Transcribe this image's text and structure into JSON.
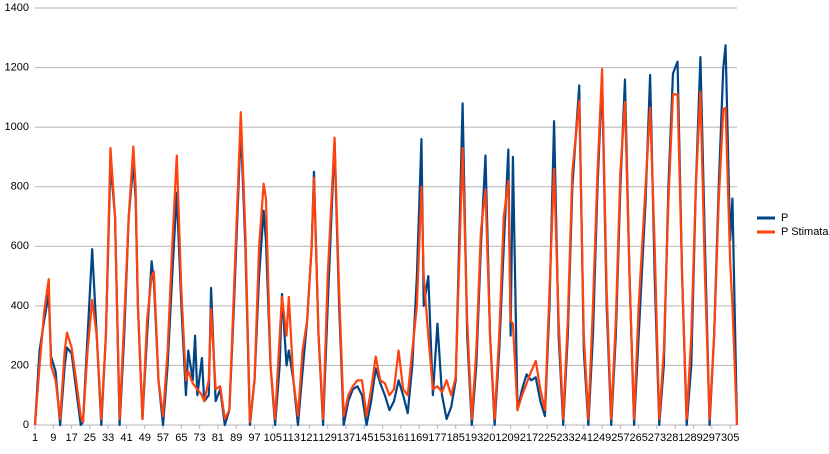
{
  "chart_data": {
    "type": "line",
    "x": [
      1,
      3,
      5,
      7,
      8,
      10,
      12,
      14,
      15,
      17,
      19,
      21,
      22,
      24,
      26,
      28,
      30,
      32,
      34,
      36,
      38,
      40,
      42,
      44,
      45,
      46,
      48,
      50,
      52,
      53,
      55,
      57,
      59,
      61,
      63,
      65,
      67,
      68,
      70,
      71,
      72,
      74,
      75,
      77,
      78,
      80,
      82,
      84,
      86,
      88,
      91,
      93,
      95,
      97,
      99,
      101,
      102,
      104,
      106,
      108,
      109,
      111,
      112,
      114,
      116,
      118,
      120,
      122,
      123,
      125,
      127,
      129,
      132,
      134,
      136,
      138,
      140,
      142,
      144,
      146,
      148,
      150,
      152,
      154,
      156,
      158,
      160,
      162,
      164,
      166,
      168,
      170,
      171,
      173,
      175,
      177,
      179,
      181,
      183,
      185,
      188,
      190,
      192,
      194,
      196,
      198,
      200,
      202,
      204,
      206,
      208,
      209,
      210,
      212,
      214,
      216,
      218,
      220,
      222,
      224,
      226,
      228,
      230,
      232,
      234,
      236,
      239,
      241,
      243,
      245,
      247,
      249,
      251,
      253,
      255,
      257,
      259,
      261,
      263,
      265,
      268,
      270,
      272,
      274,
      276,
      278,
      280,
      282,
      284,
      286,
      288,
      290,
      292,
      294,
      296,
      298,
      300,
      302,
      303,
      305,
      306,
      308
    ],
    "series": [
      {
        "name": "P",
        "color": "#004586",
        "values": [
          0,
          250,
          350,
          440,
          230,
          180,
          0,
          200,
          260,
          240,
          120,
          0,
          10,
          300,
          590,
          300,
          0,
          300,
          880,
          700,
          0,
          300,
          700,
          880,
          760,
          400,
          20,
          300,
          550,
          480,
          150,
          0,
          200,
          500,
          780,
          400,
          100,
          250,
          150,
          300,
          100,
          225,
          80,
          100,
          460,
          80,
          120,
          0,
          50,
          400,
          1000,
          600,
          0,
          150,
          500,
          720,
          620,
          200,
          0,
          200,
          440,
          200,
          250,
          150,
          0,
          180,
          350,
          600,
          850,
          300,
          0,
          400,
          950,
          400,
          0,
          80,
          120,
          130,
          100,
          0,
          80,
          190,
          140,
          100,
          50,
          80,
          150,
          100,
          40,
          200,
          500,
          960,
          400,
          500,
          100,
          340,
          100,
          20,
          60,
          150,
          1080,
          300,
          0,
          200,
          600,
          905,
          300,
          0,
          250,
          600,
          925,
          300,
          900,
          50,
          120,
          170,
          150,
          160,
          80,
          30,
          400,
          1020,
          300,
          0,
          300,
          800,
          1140,
          250,
          0,
          300,
          800,
          1165,
          400,
          0,
          300,
          800,
          1160,
          500,
          0,
          300,
          750,
          1175,
          500,
          0,
          200,
          800,
          1180,
          1220,
          500,
          0,
          200,
          800,
          1235,
          600,
          0,
          300,
          800,
          1200,
          1275,
          620,
          760,
          0
        ]
      },
      {
        "name": "P Stimata",
        "color": "#ff420e",
        "values": [
          0,
          200,
          380,
          490,
          200,
          150,
          20,
          250,
          310,
          260,
          150,
          30,
          10,
          250,
          420,
          300,
          20,
          300,
          930,
          700,
          20,
          350,
          700,
          935,
          800,
          400,
          20,
          350,
          500,
          515,
          150,
          30,
          250,
          600,
          905,
          450,
          150,
          180,
          140,
          130,
          120,
          100,
          80,
          150,
          390,
          120,
          130,
          20,
          50,
          450,
          1050,
          650,
          10,
          150,
          600,
          810,
          760,
          200,
          20,
          300,
          430,
          300,
          430,
          150,
          30,
          250,
          350,
          600,
          830,
          300,
          20,
          500,
          965,
          450,
          30,
          100,
          130,
          150,
          150,
          30,
          120,
          230,
          150,
          140,
          100,
          120,
          250,
          120,
          100,
          250,
          400,
          800,
          500,
          300,
          120,
          130,
          110,
          150,
          100,
          160,
          930,
          350,
          20,
          250,
          650,
          790,
          300,
          20,
          300,
          700,
          820,
          350,
          340,
          50,
          100,
          140,
          180,
          215,
          120,
          50,
          450,
          860,
          350,
          20,
          350,
          850,
          1090,
          300,
          20,
          400,
          850,
          1195,
          450,
          20,
          350,
          850,
          1085,
          500,
          20,
          400,
          800,
          1065,
          600,
          20,
          250,
          750,
          1110,
          1110,
          500,
          20,
          300,
          800,
          1120,
          500,
          20,
          300,
          750,
          1060,
          1065,
          550,
          400,
          0
        ]
      }
    ],
    "xlim": [
      1,
      308
    ],
    "xticks": [
      1,
      9,
      17,
      25,
      33,
      41,
      49,
      57,
      65,
      73,
      81,
      89,
      97,
      105,
      113,
      121,
      129,
      137,
      145,
      153,
      161,
      169,
      177,
      185,
      193,
      201,
      209,
      217,
      225,
      233,
      241,
      249,
      257,
      265,
      273,
      281,
      289,
      297,
      305
    ],
    "ylim": [
      0,
      1400
    ],
    "yticks": [
      0,
      200,
      400,
      600,
      800,
      1000,
      1200,
      1400
    ],
    "grid": true,
    "legend": "right"
  }
}
